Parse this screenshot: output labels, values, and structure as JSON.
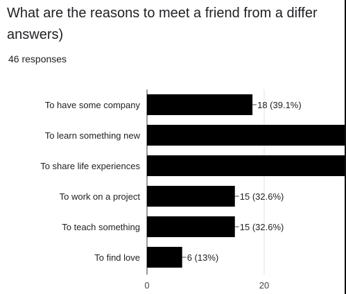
{
  "question": {
    "title_line1": "What are the reasons to meet a friend from a differ",
    "title_line2": "answers)",
    "responses": "46 responses"
  },
  "chart_data": {
    "type": "bar",
    "orientation": "horizontal",
    "categories": [
      "To have some company",
      "To learn something new",
      "To share life experiences",
      "To work on a project",
      "To teach something",
      "To find love"
    ],
    "values": [
      18,
      null,
      null,
      15,
      15,
      6
    ],
    "data_labels": [
      "18 (39.1%)",
      "",
      "",
      "15 (32.6%)",
      "15 (32.6%)",
      "6 (13%)"
    ],
    "x_ticks": [
      0,
      20
    ],
    "bar_color": "#000000",
    "note": "Bars for 'To learn something new' and 'To share life experiences' extend beyond the visible area (cropped)."
  }
}
